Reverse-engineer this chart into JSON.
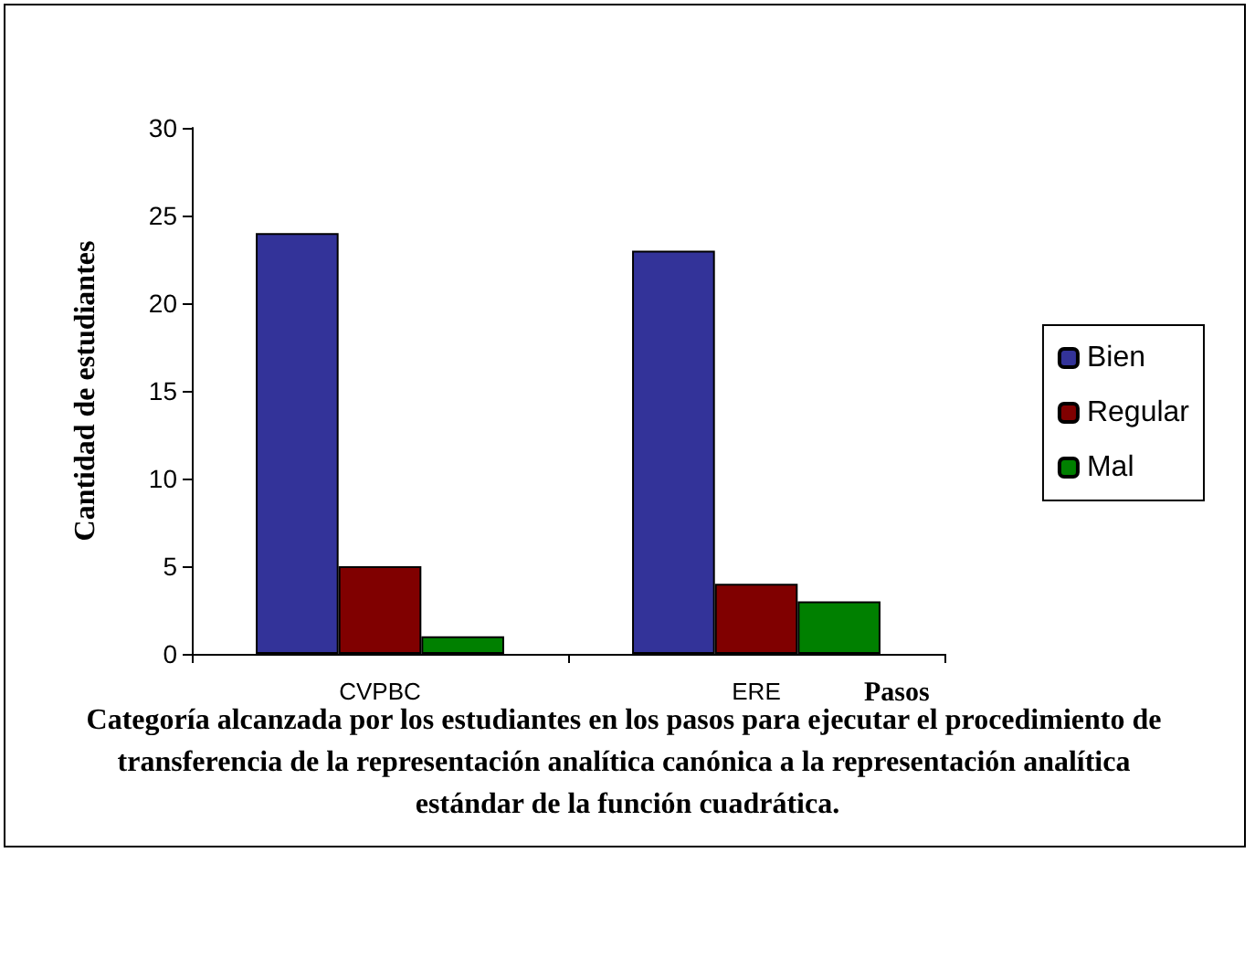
{
  "chart_data": {
    "type": "bar",
    "title": "Categoría alcanzada por los estudiantes en los pasos para ejecutar el procedimiento de transferencia de la representación analítica canónica a la representación analítica estándar de la función cuadrática.",
    "xlabel": "Pasos",
    "ylabel": "Cantidad de estudiantes",
    "categories": [
      "CVPBC",
      "ERE"
    ],
    "series": [
      {
        "name": "Bien",
        "color": "#333399",
        "values": [
          24,
          23
        ]
      },
      {
        "name": "Regular",
        "color": "#800000",
        "values": [
          5,
          4
        ]
      },
      {
        "name": "Mal",
        "color": "#008000",
        "values": [
          1,
          3
        ]
      }
    ],
    "ylim": [
      0,
      30
    ],
    "yticks": [
      0,
      5,
      10,
      15,
      20,
      25,
      30
    ],
    "grid": false,
    "legend": "right"
  }
}
